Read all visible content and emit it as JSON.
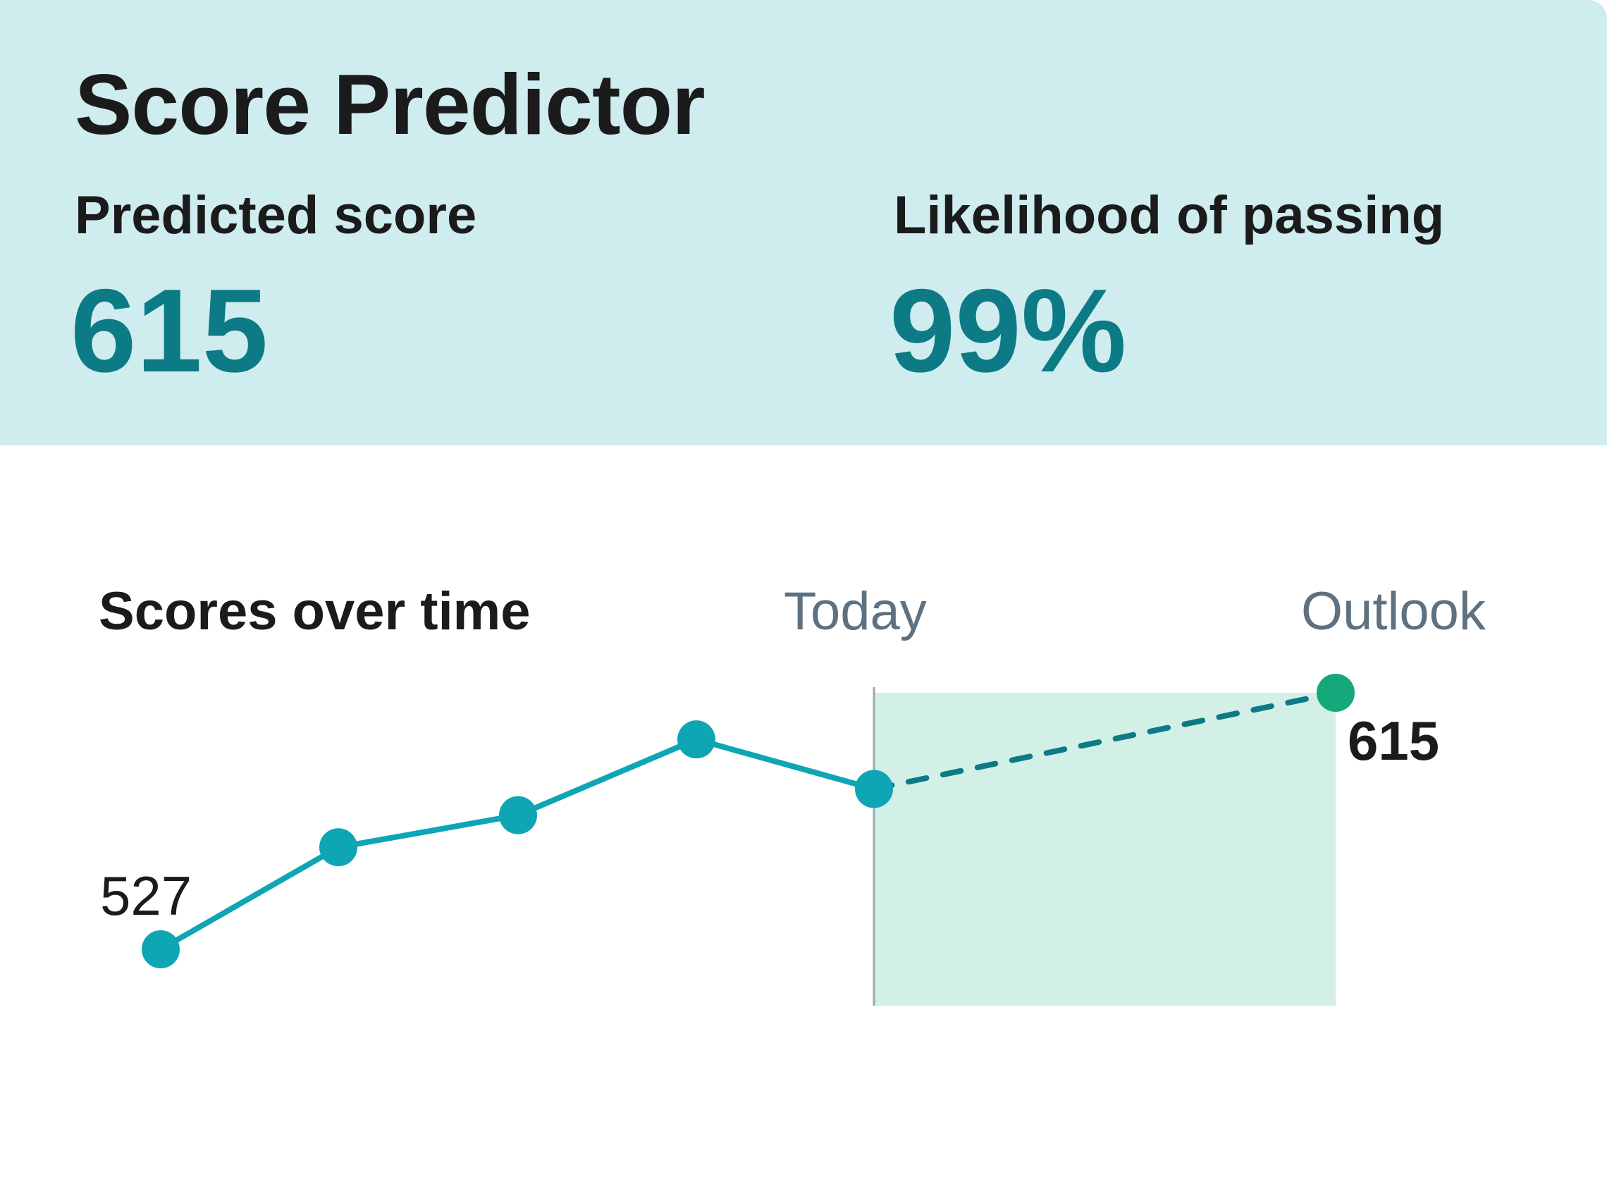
{
  "header": {
    "title": "Score Predictor",
    "predicted_label": "Predicted score",
    "predicted_value": "615",
    "likelihood_label": "Likelihood of passing",
    "likelihood_value": "99%"
  },
  "colors": {
    "header_bg": "#cfecef",
    "accent": "#0c7b85",
    "line": "#0ea5b5",
    "projection": "#0c7b85",
    "outlook_point": "#14a87a",
    "outlook_band": "#d2f0e6",
    "muted_text": "#5e7180",
    "text": "#1b1b1b"
  },
  "chart_data": {
    "type": "line",
    "title": "Scores over time",
    "labels": {
      "today": "Today",
      "outlook": "Outlook"
    },
    "series": [
      {
        "values": [
          527,
          562,
          573,
          599,
          582
        ],
        "style": "solid"
      },
      {
        "values": [
          582,
          615
        ],
        "style": "dashed",
        "start_index": 4
      }
    ],
    "annotations": [
      {
        "index": 0,
        "text": "527"
      },
      {
        "index": 5,
        "text": "615"
      }
    ],
    "today_index": 4,
    "ylim": [
      500,
      640
    ],
    "grid": false,
    "legend": "none"
  }
}
